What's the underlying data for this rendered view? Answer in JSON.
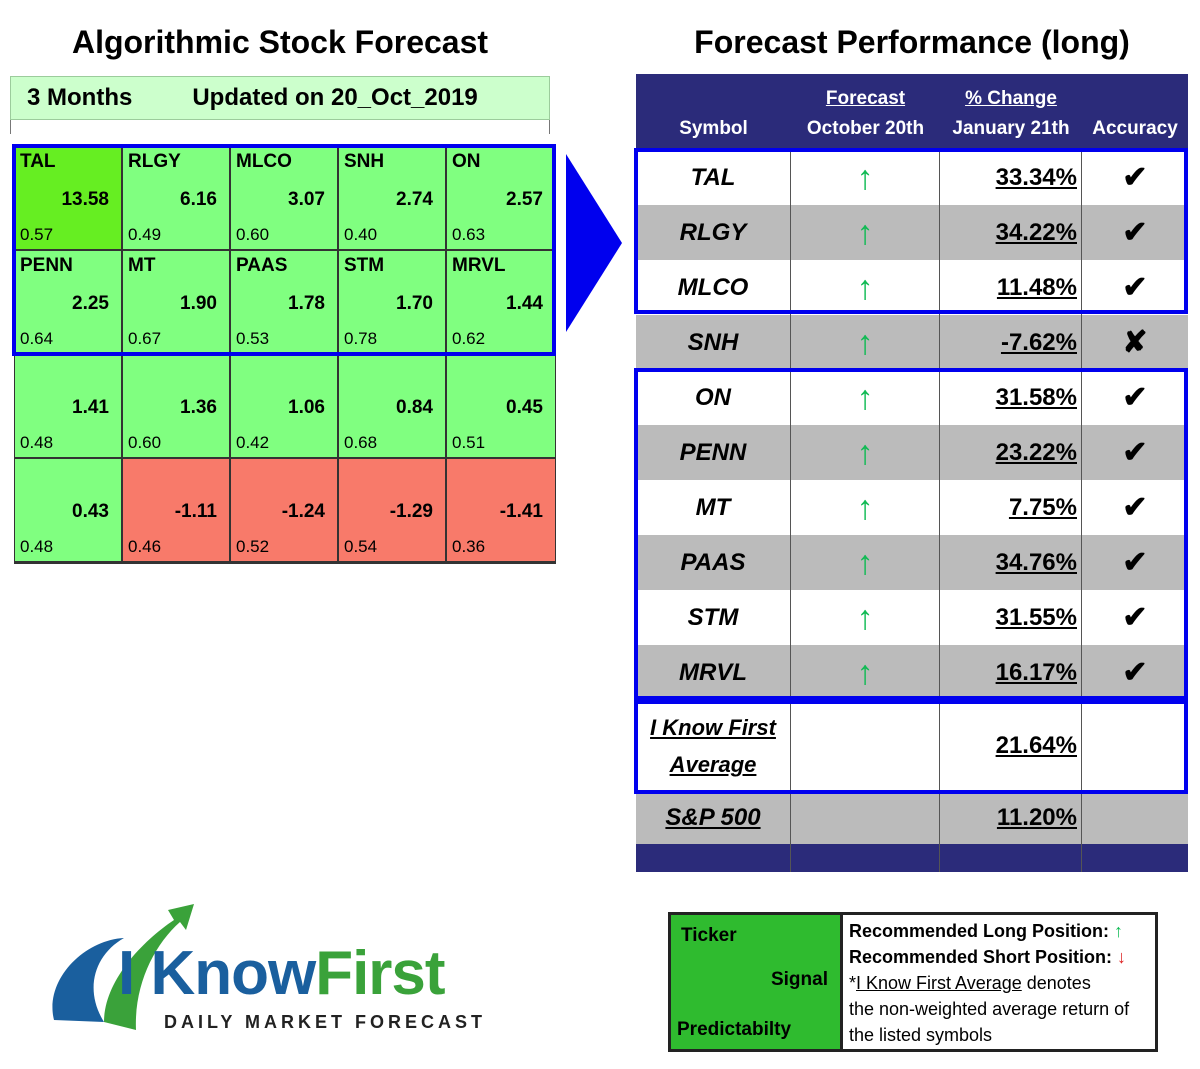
{
  "left_title": "Algorithmic Stock Forecast",
  "right_title": "Forecast Performance (long)",
  "period": "3 Months",
  "updated": "Updated on 20_Oct_2019",
  "grid": [
    {
      "symbol": "TAL",
      "value": "13.58",
      "pred": "0.57",
      "color": "top"
    },
    {
      "symbol": "RLGY",
      "value": "6.16",
      "pred": "0.49",
      "color": "g"
    },
    {
      "symbol": "MLCO",
      "value": "3.07",
      "pred": "0.60",
      "color": "g"
    },
    {
      "symbol": "SNH",
      "value": "2.74",
      "pred": "0.40",
      "color": "g"
    },
    {
      "symbol": "ON",
      "value": "2.57",
      "pred": "0.63",
      "color": "g"
    },
    {
      "symbol": "PENN",
      "value": "2.25",
      "pred": "0.64",
      "color": "g"
    },
    {
      "symbol": "MT",
      "value": "1.90",
      "pred": "0.67",
      "color": "g"
    },
    {
      "symbol": "PAAS",
      "value": "1.78",
      "pred": "0.53",
      "color": "g"
    },
    {
      "symbol": "STM",
      "value": "1.70",
      "pred": "0.78",
      "color": "g"
    },
    {
      "symbol": "MRVL",
      "value": "1.44",
      "pred": "0.62",
      "color": "g"
    },
    {
      "symbol": "",
      "value": "1.41",
      "pred": "0.48",
      "color": "g"
    },
    {
      "symbol": "",
      "value": "1.36",
      "pred": "0.60",
      "color": "g"
    },
    {
      "symbol": "",
      "value": "1.06",
      "pred": "0.42",
      "color": "g"
    },
    {
      "symbol": "",
      "value": "0.84",
      "pred": "0.68",
      "color": "g"
    },
    {
      "symbol": "",
      "value": "0.45",
      "pred": "0.51",
      "color": "g"
    },
    {
      "symbol": "",
      "value": "0.43",
      "pred": "0.48",
      "color": "g"
    },
    {
      "symbol": "",
      "value": "-1.11",
      "pred": "0.46",
      "color": "r"
    },
    {
      "symbol": "",
      "value": "-1.24",
      "pred": "0.52",
      "color": "r"
    },
    {
      "symbol": "",
      "value": "-1.29",
      "pred": "0.54",
      "color": "r"
    },
    {
      "symbol": "",
      "value": "-1.41",
      "pred": "0.36",
      "color": "r"
    }
  ],
  "perf_header": {
    "symbol": "Symbol",
    "forecast_top": "Forecast",
    "forecast_bottom": "October 20th",
    "change_top": "% Change",
    "change_bottom": "January 21th",
    "accuracy": "Accuracy"
  },
  "perf_rows": [
    {
      "symbol": "TAL",
      "signal": "↑",
      "change": "33.34%",
      "accuracy": "✔"
    },
    {
      "symbol": "RLGY",
      "signal": "↑",
      "change": "34.22%",
      "accuracy": "✔"
    },
    {
      "symbol": "MLCO",
      "signal": "↑",
      "change": "11.48%",
      "accuracy": "✔"
    },
    {
      "symbol": "SNH",
      "signal": "↑",
      "change": "-7.62%",
      "accuracy": "✘"
    },
    {
      "symbol": "ON",
      "signal": "↑",
      "change": "31.58%",
      "accuracy": "✔"
    },
    {
      "symbol": "PENN",
      "signal": "↑",
      "change": "23.22%",
      "accuracy": "✔"
    },
    {
      "symbol": "MT",
      "signal": "↑",
      "change": "7.75%",
      "accuracy": "✔"
    },
    {
      "symbol": "PAAS",
      "signal": "↑",
      "change": "34.76%",
      "accuracy": "✔"
    },
    {
      "symbol": "STM",
      "signal": "↑",
      "change": "31.55%",
      "accuracy": "✔"
    },
    {
      "symbol": "MRVL",
      "signal": "↑",
      "change": "16.17%",
      "accuracy": "✔"
    }
  ],
  "average": {
    "label_line1": "I Know First",
    "label_line2": "Average",
    "change": "21.64%"
  },
  "sp500": {
    "label": "S&P 500",
    "change": "11.20%"
  },
  "logo": {
    "brand_a": "I Know",
    "brand_b": "First",
    "tagline": "DAILY MARKET FORECAST"
  },
  "legend": {
    "ticker": "Ticker",
    "signal": "Signal",
    "predictability": "Predictabilty",
    "long": "Recommended Long Position:",
    "long_icon": "↑",
    "short": "Recommended Short Position:",
    "short_icon": "↓",
    "note_star": "*",
    "note_link": "I Know First Average",
    "note_rest1": " denotes",
    "note_line2": "the non-weighted average return of",
    "note_line3": "the listed symbols"
  },
  "colors": {
    "top": "#66ee22",
    "green": "#80ff80",
    "red": "#f87a6a",
    "navy": "#2b2b7a",
    "box": "#0000ee"
  }
}
